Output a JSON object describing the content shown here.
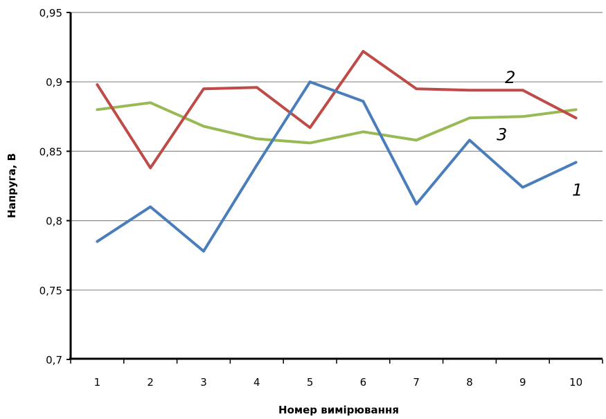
{
  "chart_data": {
    "type": "line",
    "xlabel": "Номер вимірювання",
    "ylabel": "Напруга, В",
    "categories": [
      "1",
      "2",
      "3",
      "4",
      "5",
      "6",
      "7",
      "8",
      "9",
      "10"
    ],
    "ylim": [
      0.7,
      0.95
    ],
    "yticks": [
      {
        "value": 0.7,
        "label": "0,7"
      },
      {
        "value": 0.75,
        "label": "0,75"
      },
      {
        "value": 0.8,
        "label": "0,8"
      },
      {
        "value": 0.85,
        "label": "0,85"
      },
      {
        "value": 0.9,
        "label": "0,9"
      },
      {
        "value": 0.95,
        "label": "0,95"
      }
    ],
    "grid": true,
    "series": [
      {
        "name": "1",
        "color": "#4a7ebb",
        "values": [
          0.785,
          0.81,
          0.778,
          0.84,
          0.9,
          0.886,
          0.812,
          0.858,
          0.824,
          0.842
        ]
      },
      {
        "name": "2",
        "color": "#be4b48",
        "values": [
          0.898,
          0.838,
          0.895,
          0.896,
          0.867,
          0.922,
          0.895,
          0.894,
          0.894,
          0.874
        ]
      },
      {
        "name": "3",
        "color": "#98b954",
        "values": [
          0.88,
          0.885,
          0.868,
          0.859,
          0.856,
          0.864,
          0.858,
          0.874,
          0.875,
          0.88
        ]
      }
    ]
  }
}
